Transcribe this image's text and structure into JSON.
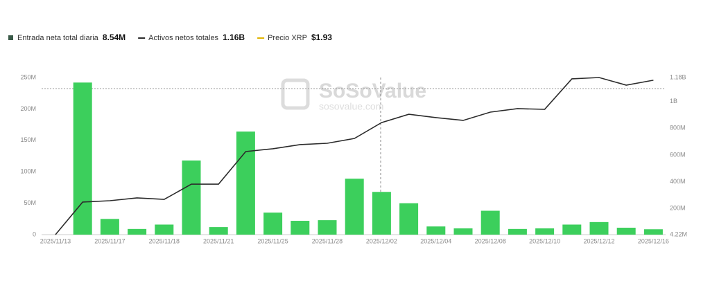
{
  "chart_data": {
    "type": "bar_line",
    "watermark": {
      "title": "SoSoValue",
      "subtitle": "sosovalue.com"
    },
    "categories": [
      "2025/11/13",
      null,
      "2025/11/17",
      null,
      "2025/11/18",
      null,
      "2025/11/21",
      null,
      "2025/11/25",
      null,
      "2025/11/28",
      null,
      "2025/12/02",
      null,
      "2025/12/04",
      null,
      "2025/12/08",
      null,
      "2025/12/10",
      null,
      "2025/12/12",
      null,
      "2025/12/16"
    ],
    "series": [
      {
        "name": "Entrada neta total diaria",
        "legend_value": "8.54M",
        "color": "#3ccf5c",
        "type": "bar",
        "values": [
          null,
          242000000,
          25000000,
          9000000,
          16000000,
          118000000,
          12000000,
          164000000,
          35000000,
          22000000,
          23000000,
          89000000,
          68000000,
          50000000,
          13000000,
          10000000,
          38000000,
          9000000,
          10000000,
          16000000,
          20000000,
          11000000,
          8540000
        ]
      },
      {
        "name": "Activos netos totales",
        "legend_value": "1.16B",
        "color": "#2b2b2b",
        "type": "line",
        "axis": "y2",
        "values": [
          4220000,
          248000000,
          258000000,
          279000000,
          268000000,
          382000000,
          382000000,
          626000000,
          647000000,
          678000000,
          688000000,
          724000000,
          843000000,
          905000000,
          880000000,
          859000000,
          921000000,
          947000000,
          942000000,
          1170000000,
          1180000000,
          1123000000,
          1160000000
        ]
      },
      {
        "name": "Precio XRP",
        "legend_value": "$1.93",
        "color": "#e0b400",
        "type": "line"
      }
    ],
    "ylim": [
      0,
      250000000
    ],
    "yticks": [
      0,
      {
        "value": 50000000,
        "label": "50M"
      },
      {
        "value": 100000000,
        "label": "100M"
      },
      {
        "value": 150000000,
        "label": "150M"
      },
      {
        "value": 200000000,
        "label": "200M"
      },
      {
        "value": 250000000,
        "label": "250M"
      }
    ],
    "y2lim": [
      4220000,
      1180000000
    ],
    "y2ticks": [
      {
        "value": 4220000,
        "label": "4.22M"
      },
      {
        "value": 200000000,
        "label": "200M"
      },
      {
        "value": 400000000,
        "label": "400M"
      },
      {
        "value": 600000000,
        "label": "600M"
      },
      {
        "value": 800000000,
        "label": "800M"
      },
      {
        "value": 1000000000,
        "label": "1B"
      },
      {
        "value": 1180000000,
        "label": "1.18B"
      }
    ]
  }
}
